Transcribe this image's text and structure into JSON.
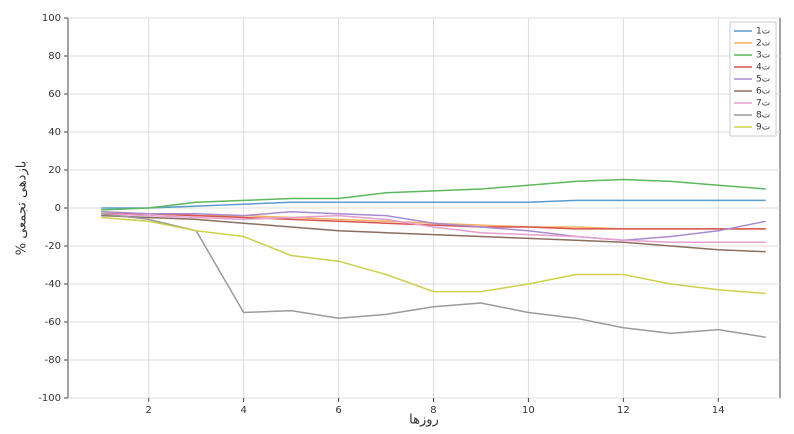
{
  "chart_data": {
    "type": "line",
    "x_label": "روزها",
    "y_label": "% بازدهی تجمعی",
    "x": [
      1,
      2,
      3,
      4,
      5,
      6,
      7,
      8,
      9,
      10,
      11,
      12,
      13,
      14,
      15
    ],
    "series": [
      {
        "name": "ت1",
        "color": "#5b9bd0",
        "values": [
          0,
          0,
          1,
          2,
          3,
          3,
          3,
          3,
          3,
          3,
          4,
          4,
          4,
          4,
          4
        ]
      },
      {
        "name": "ت2",
        "color": "#f5b060",
        "values": [
          -2,
          -3,
          -4,
          -4,
          -5,
          -6,
          -7,
          -8,
          -9,
          -10,
          -10,
          -11,
          -11,
          -11,
          -11
        ]
      },
      {
        "name": "ت3",
        "color": "#5cb85c",
        "values": [
          -1,
          0,
          3,
          4,
          5,
          5,
          8,
          9,
          10,
          12,
          14,
          15,
          14,
          12,
          10
        ]
      },
      {
        "name": "ت4",
        "color": "#d9534f",
        "values": [
          -3,
          -3,
          -4,
          -5,
          -6,
          -7,
          -8,
          -9,
          -10,
          -10,
          -11,
          -11,
          -11,
          -11,
          -11
        ]
      },
      {
        "name": "ت5",
        "color": "#a98bd0",
        "values": [
          -2,
          -3,
          -3,
          -4,
          -2,
          -3,
          -4,
          -8,
          -10,
          -12,
          -15,
          -17,
          -15,
          -12,
          -7
        ]
      },
      {
        "name": "ت6",
        "color": "#8c6d5e",
        "values": [
          -4,
          -5,
          -6,
          -8,
          -10,
          -12,
          -13,
          -14,
          -15,
          -16,
          -17,
          -18,
          -20,
          -22,
          -23
        ]
      },
      {
        "name": "ت7",
        "color": "#e59fd0",
        "values": [
          -3,
          -4,
          -5,
          -6,
          -5,
          -4,
          -6,
          -10,
          -13,
          -14,
          -15,
          -17,
          -18,
          -18,
          -18
        ]
      },
      {
        "name": "ت8",
        "color": "#9a9a9a",
        "values": [
          -3,
          -6,
          -12,
          -55,
          -54,
          -58,
          -56,
          -52,
          -50,
          -55,
          -58,
          -63,
          -66,
          -64,
          -68
        ]
      },
      {
        "name": "ت9",
        "color": "#cfd04a",
        "values": [
          -5,
          -7,
          -12,
          -15,
          -25,
          -28,
          -35,
          -44,
          -44,
          -40,
          -35,
          -35,
          -40,
          -43,
          -45
        ]
      }
    ],
    "xlim": [
      0.3,
      15.3
    ],
    "ylim": [
      -100,
      100
    ],
    "xticks": [
      2,
      4,
      6,
      8,
      10,
      12,
      14
    ],
    "yticks": [
      -100,
      -80,
      -60,
      -40,
      -20,
      0,
      20,
      40,
      60,
      80,
      100
    ],
    "grid": true,
    "legend": "upper right"
  }
}
